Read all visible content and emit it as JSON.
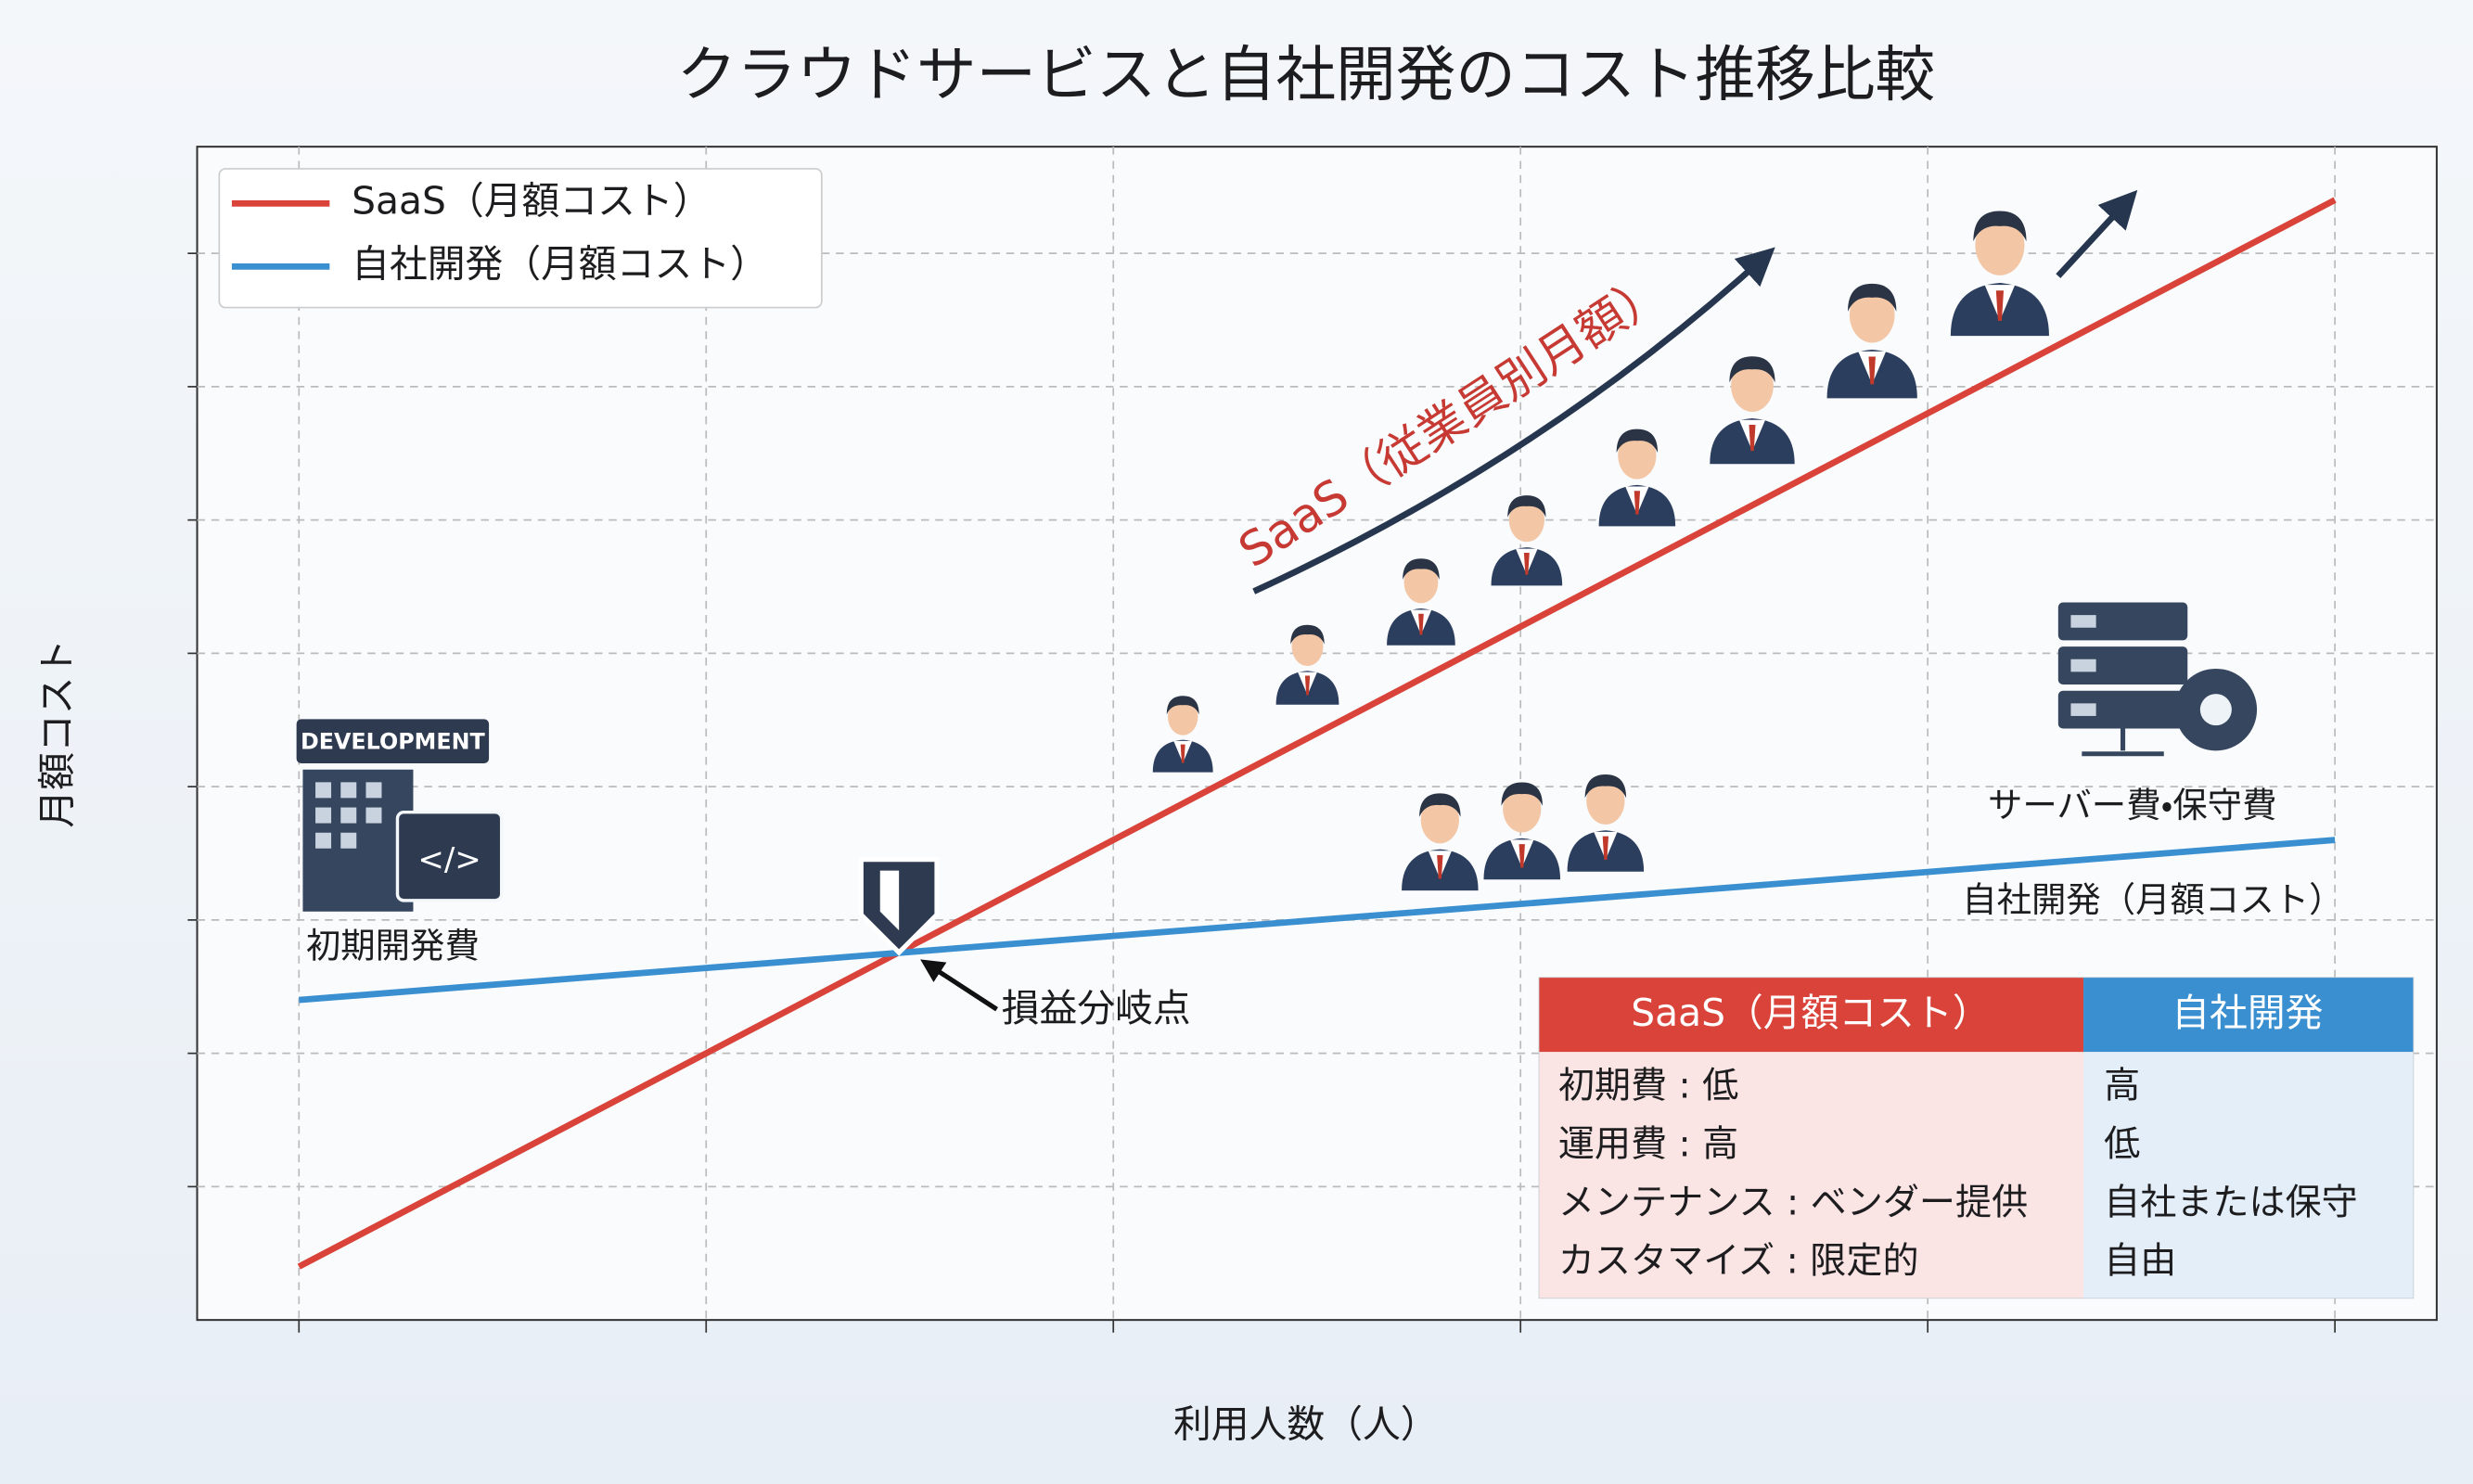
{
  "chart_data": {
    "type": "line",
    "title": "クラウドサービスと自社開発のコスト推移比較",
    "x_label": "利用人数（人）",
    "y_label": "月額コスト",
    "x": [
      0,
      1,
      2,
      3,
      4,
      5
    ],
    "xlim": [
      -0.25,
      5.25
    ],
    "ylim": [
      0,
      8.8
    ],
    "xticks": [
      0,
      1,
      2,
      3,
      4,
      5
    ],
    "yticks": [
      1,
      2,
      3,
      4,
      5,
      6,
      7,
      8
    ],
    "grid": true,
    "legend": "upper left",
    "series": [
      {
        "name": "SaaS（月額コスト）",
        "color": "#d9433a",
        "values": [
          0.4,
          2.0,
          3.6,
          5.2,
          6.8,
          8.4
        ]
      },
      {
        "name": "自社開発（月額コスト）",
        "color": "#3a8fd0",
        "values": [
          2.4,
          2.64,
          2.88,
          3.12,
          3.36,
          3.6
        ]
      }
    ],
    "annotations": {
      "saas_growth": "SaaS（従業員別月額）",
      "development_badge": "DEVELOPMENT",
      "initial_cost": "初期開発費",
      "break_even": "損益分岐点",
      "server_cost": "サーバー費・保守費"
    },
    "table": {
      "header": [
        "SaaS（月額コスト）",
        "自社開発"
      ],
      "rows": [
        [
          "初期費 : 低",
          "高"
        ],
        [
          "運用費 : 高",
          "低"
        ],
        [
          "メンテナンス : ベンダー提供",
          "自社または保守"
        ],
        [
          "カスタマイズ : 限定的",
          "自由"
        ]
      ]
    }
  }
}
